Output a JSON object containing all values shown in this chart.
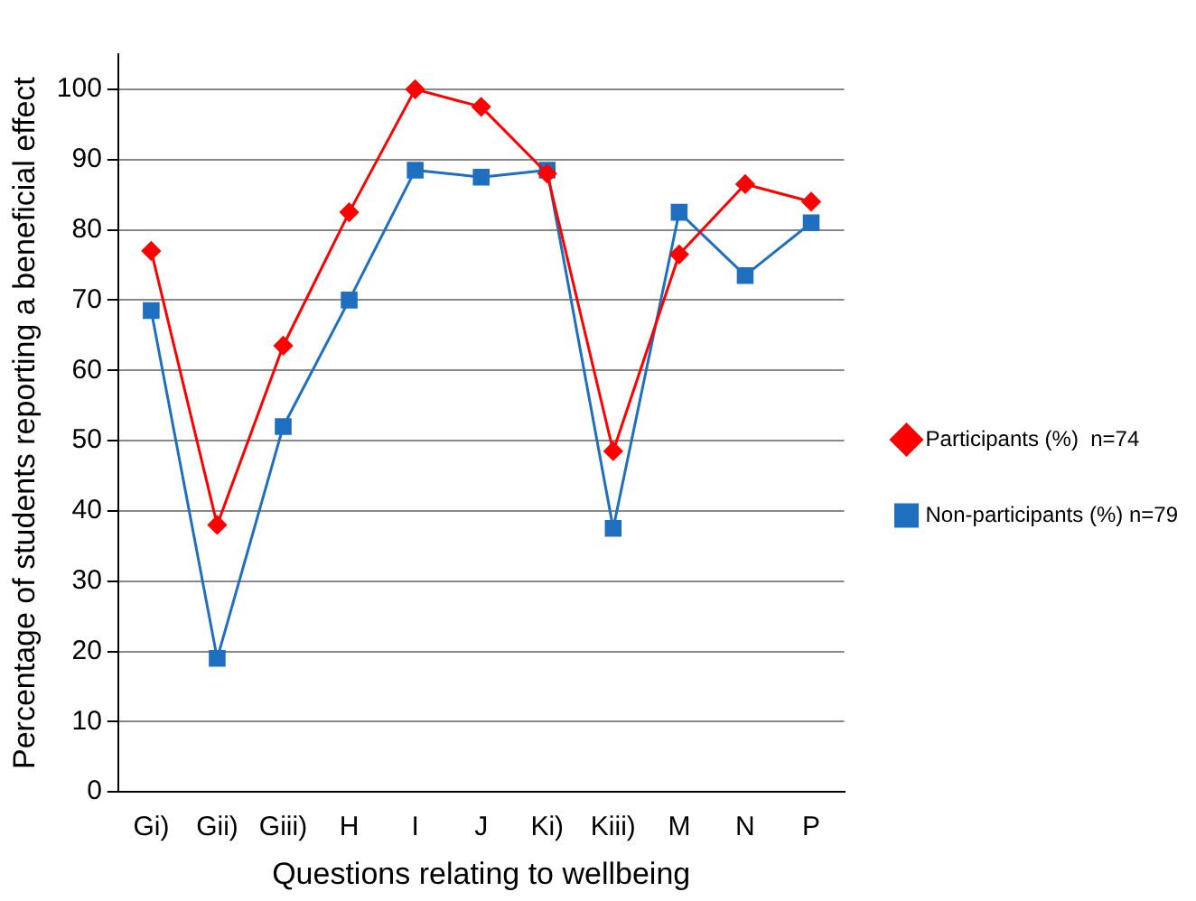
{
  "chart_data": {
    "type": "line",
    "xlabel": "Questions relating to wellbeing",
    "ylabel": "Percentage of students reporting a beneficial effect",
    "categories": [
      "Gi)",
      "Gii)",
      "Giii)",
      "H",
      "I",
      "J",
      "Ki)",
      "Kiii)",
      "M",
      "N",
      "P"
    ],
    "series": [
      {
        "name": "Participants (%)  n=74",
        "color": "#ff0000",
        "marker": "diamond",
        "values": [
          77,
          38,
          63.5,
          82.5,
          100,
          97.5,
          88,
          48.5,
          76.5,
          86.5,
          84
        ]
      },
      {
        "name": "Non-participants (%) n=79",
        "color": "#1f6fc0",
        "marker": "square",
        "values": [
          68.5,
          19,
          52,
          70,
          88.5,
          87.5,
          88.5,
          37.5,
          82.5,
          73.5,
          81
        ]
      }
    ],
    "ylim": [
      0,
      105
    ],
    "yticks": [
      0,
      10,
      20,
      30,
      40,
      50,
      60,
      70,
      80,
      90,
      100
    ],
    "grid": "y",
    "legend": "right",
    "line_style": "solid"
  }
}
